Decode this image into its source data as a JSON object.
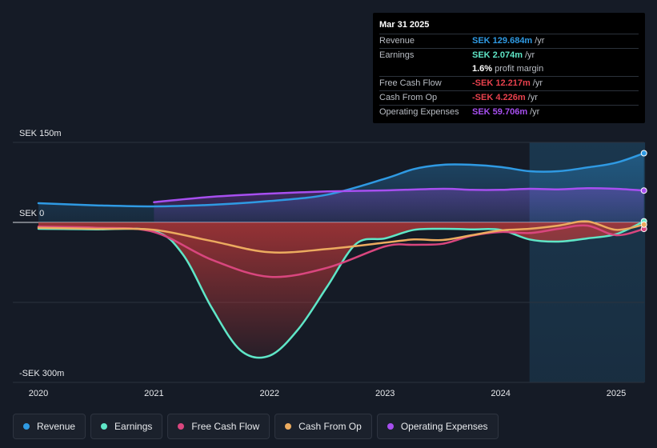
{
  "chart_data": {
    "type": "area",
    "currency": "SEK",
    "y_unit": "m",
    "ylim": [
      -300,
      150
    ],
    "y_tick_labels": [
      {
        "value": 150,
        "label": "SEK 150m"
      },
      {
        "value": 0,
        "label": "SEK 0"
      },
      {
        "value": -300,
        "label": "-SEK 300m"
      }
    ],
    "x_range": [
      2019.8,
      2025.25
    ],
    "x_ticks": [
      {
        "value": 2020,
        "label": "2020"
      },
      {
        "value": 2021,
        "label": "2021"
      },
      {
        "value": 2022,
        "label": "2022"
      },
      {
        "value": 2023,
        "label": "2023"
      },
      {
        "value": 2024,
        "label": "2024"
      },
      {
        "value": 2025,
        "label": "2025"
      }
    ],
    "forecast_start": 2024.25,
    "series": [
      {
        "key": "revenue",
        "name": "Revenue",
        "color": "#2f9ae3",
        "fill": true,
        "x": [
          2020.0,
          2020.5,
          2021.0,
          2021.5,
          2022.0,
          2022.5,
          2023.0,
          2023.25,
          2023.5,
          2023.75,
          2024.0,
          2024.25,
          2024.5,
          2024.75,
          2025.0,
          2025.24
        ],
        "values": [
          36,
          32,
          30,
          33,
          40,
          52,
          82,
          100,
          108,
          108,
          104,
          96,
          96,
          103,
          112,
          129.684
        ]
      },
      {
        "key": "earnings",
        "name": "Earnings",
        "color": "#5fe6c7",
        "fill": true,
        "x": [
          2020.0,
          2020.5,
          2021.0,
          2021.25,
          2021.5,
          2021.75,
          2022.0,
          2022.25,
          2022.5,
          2022.75,
          2023.0,
          2023.25,
          2023.5,
          2023.75,
          2024.0,
          2024.25,
          2024.5,
          2024.75,
          2025.0,
          2025.24
        ],
        "values": [
          -12,
          -13,
          -16,
          -60,
          -160,
          -240,
          -250,
          -200,
          -120,
          -40,
          -30,
          -14,
          -12,
          -13,
          -14,
          -32,
          -36,
          -30,
          -22,
          2.074
        ]
      },
      {
        "key": "fcf",
        "name": "Free Cash Flow",
        "color": "#d9467e",
        "fill": false,
        "x": [
          2020.0,
          2020.5,
          2021.0,
          2021.5,
          2022.0,
          2022.5,
          2023.0,
          2023.25,
          2023.5,
          2023.75,
          2024.0,
          2024.25,
          2024.5,
          2024.75,
          2025.0,
          2025.24
        ],
        "values": [
          -8,
          -10,
          -18,
          -70,
          -102,
          -85,
          -45,
          -42,
          -40,
          -25,
          -18,
          -20,
          -12,
          -6,
          -24,
          -12.217
        ]
      },
      {
        "key": "cfo",
        "name": "Cash From Op",
        "color": "#ecab5f",
        "fill": false,
        "x": [
          2020.0,
          2020.5,
          2021.0,
          2021.5,
          2022.0,
          2022.5,
          2023.0,
          2023.25,
          2023.5,
          2023.75,
          2024.0,
          2024.25,
          2024.5,
          2024.75,
          2025.0,
          2025.24
        ],
        "values": [
          -10,
          -12,
          -14,
          -35,
          -56,
          -50,
          -38,
          -32,
          -33,
          -24,
          -15,
          -12,
          -6,
          2,
          -14,
          -4.226
        ]
      },
      {
        "key": "opex",
        "name": "Operating Expenses",
        "color": "#a74ff0",
        "fill": true,
        "x": [
          2021.0,
          2021.5,
          2022.0,
          2022.5,
          2023.0,
          2023.5,
          2023.75,
          2024.0,
          2024.25,
          2024.5,
          2024.75,
          2025.0,
          2025.24
        ],
        "values": [
          38,
          48,
          54,
          58,
          60,
          63,
          61,
          61,
          63,
          62,
          64,
          63,
          59.706
        ]
      }
    ]
  },
  "tooltip": {
    "date": "Mar 31 2025",
    "rows": [
      {
        "label": "Revenue",
        "value": "SEK 129.684m",
        "unit": "/yr",
        "color": "#2f9ae3"
      },
      {
        "label": "Earnings",
        "value": "SEK 2.074m",
        "unit": "/yr",
        "color": "#5fe6c7"
      },
      {
        "label": "",
        "value": "1.6%",
        "unit": "profit margin",
        "color": "#ffffff"
      },
      {
        "label": "Free Cash Flow",
        "value": "-SEK 12.217m",
        "unit": "/yr",
        "color": "#e8414d"
      },
      {
        "label": "Cash From Op",
        "value": "-SEK 4.226m",
        "unit": "/yr",
        "color": "#e8414d"
      },
      {
        "label": "Operating Expenses",
        "value": "SEK 59.706m",
        "unit": "/yr",
        "color": "#a74ff0"
      }
    ]
  },
  "legend": [
    {
      "label": "Revenue",
      "color": "#2f9ae3"
    },
    {
      "label": "Earnings",
      "color": "#5fe6c7"
    },
    {
      "label": "Free Cash Flow",
      "color": "#d9467e"
    },
    {
      "label": "Cash From Op",
      "color": "#ecab5f"
    },
    {
      "label": "Operating Expenses",
      "color": "#a74ff0"
    }
  ]
}
